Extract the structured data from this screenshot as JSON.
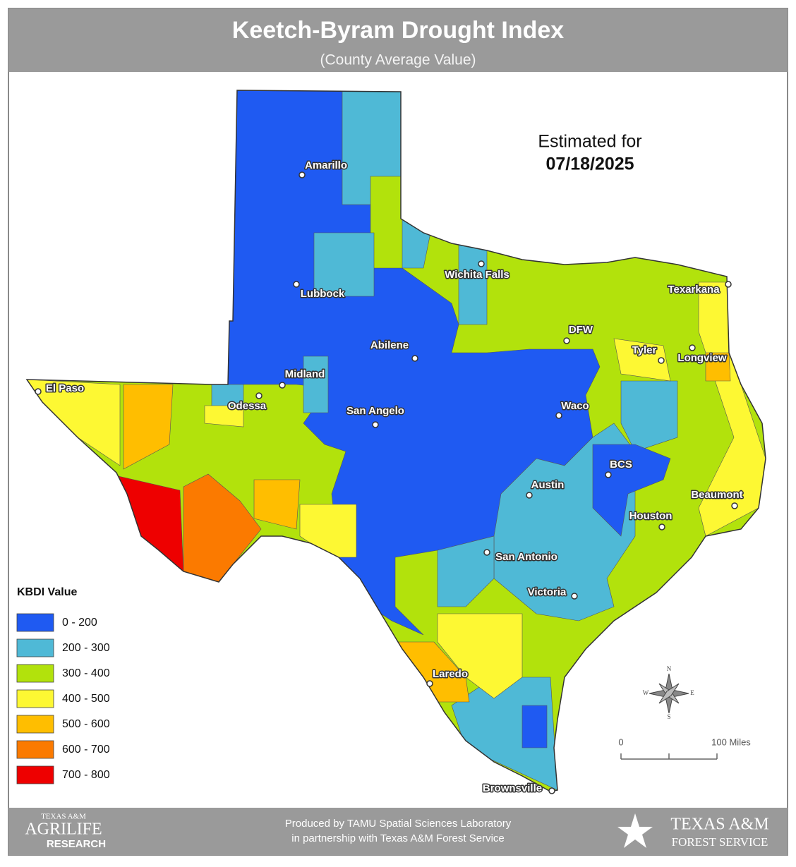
{
  "header": {
    "title": "Keetch-Byram Drought Index",
    "subtitle": "(County Average Value)"
  },
  "estimate": {
    "label": "Estimated for",
    "date": "07/18/2025"
  },
  "legend": {
    "title": "KBDI Value",
    "items": [
      {
        "label": "0 - 200",
        "color": "#1f5af2"
      },
      {
        "label": "200 - 300",
        "color": "#4fb9d6"
      },
      {
        "label": "300 - 400",
        "color": "#b2e20c"
      },
      {
        "label": "400 - 500",
        "color": "#fdf833"
      },
      {
        "label": "500 - 600",
        "color": "#ffbe00"
      },
      {
        "label": "600 - 700",
        "color": "#fb7a00"
      },
      {
        "label": "700 - 800",
        "color": "#ee0000"
      }
    ]
  },
  "cities": [
    "Amarillo",
    "Lubbock",
    "Wichita Falls",
    "Texarkana",
    "DFW",
    "Tyler",
    "Longview",
    "Abilene",
    "Midland",
    "El Paso",
    "Odessa",
    "San Angelo",
    "Waco",
    "BCS",
    "Austin",
    "Beaumont",
    "Houston",
    "San Antonio",
    "Victoria",
    "Laredo",
    "Brownsville"
  ],
  "compass": [
    "N",
    "E",
    "S",
    "W"
  ],
  "scale": {
    "start": "0",
    "end": "100 Miles"
  },
  "footer": {
    "lines": [
      "Produced by TAMU Spatial Sciences Laboratory",
      "in partnership with Texas A&M Forest Service"
    ],
    "left_logo": [
      "TEXAS A&M",
      "AGRILIFE",
      "RESEARCH"
    ],
    "right_logo": [
      "TEXAS A&M",
      "FOREST SERVICE"
    ]
  }
}
